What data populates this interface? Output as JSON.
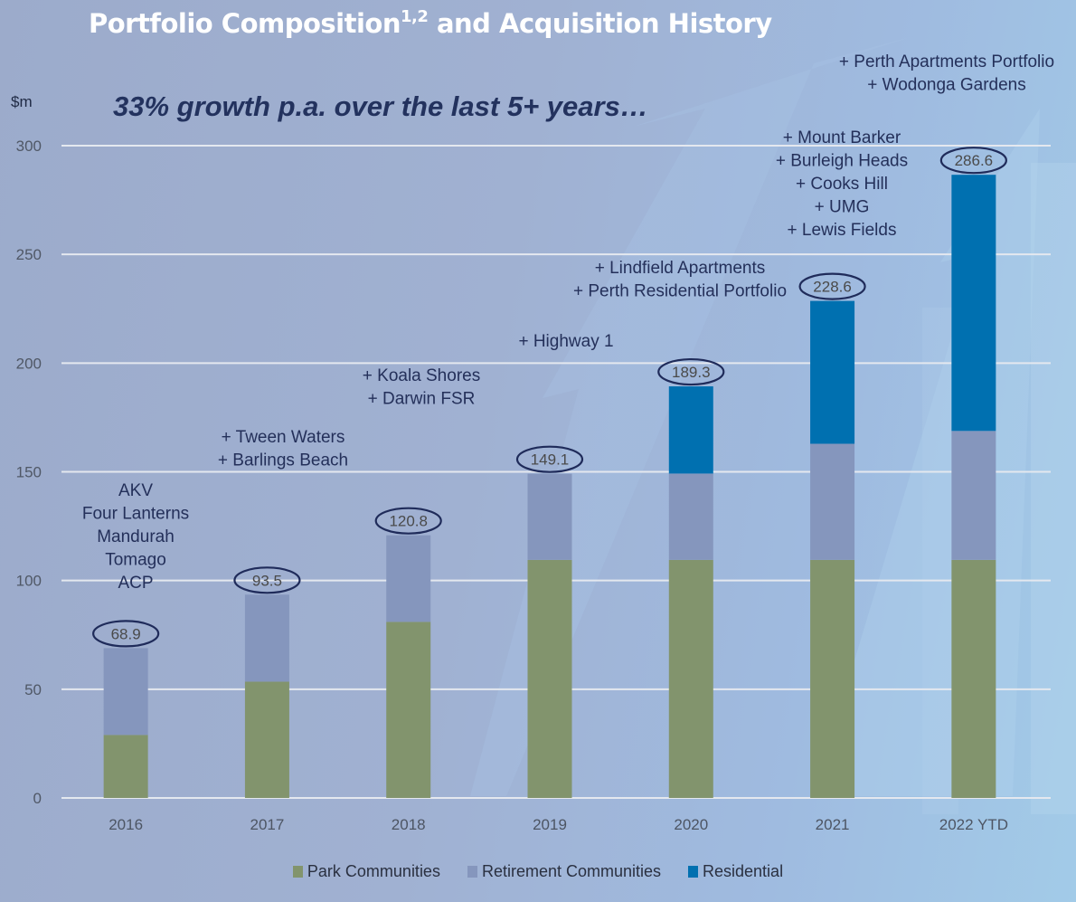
{
  "header": {
    "title_main": "Portfolio Composition",
    "title_superscript": "1,2",
    "title_rest": " and Acquisition History",
    "subtitle": "33% growth p.a. over the last 5+ years…",
    "unit_label": "$m"
  },
  "colors": {
    "park": "#82946d",
    "retirement": "#8596bd",
    "residential": "#0070b0",
    "gridline": "#e4e8ef",
    "annotation_text": "#24305a",
    "ellipse_stroke": "#1f2b5a"
  },
  "chart_data": {
    "type": "bar",
    "stacked": true,
    "title": "Portfolio Composition1,2 and Acquisition History",
    "subtitle": "33% growth p.a. over the last 5+ years…",
    "xlabel": "",
    "ylabel": "$m",
    "ylim": [
      0,
      300
    ],
    "yticks": [
      0,
      50,
      100,
      150,
      200,
      250,
      300
    ],
    "grid": true,
    "legend_position": "bottom-center",
    "categories": [
      "2016",
      "2017",
      "2018",
      "2019",
      "2020",
      "2021",
      "2022 YTD"
    ],
    "series": [
      {
        "name": "Park Communities",
        "color": "#82946d",
        "values": [
          29.0,
          53.5,
          81.0,
          109.5,
          109.5,
          109.5,
          109.5
        ]
      },
      {
        "name": "Retirement Communities",
        "color": "#8596bd",
        "values": [
          39.9,
          40.0,
          39.8,
          39.6,
          39.7,
          53.4,
          59.3
        ]
      },
      {
        "name": "Residential",
        "color": "#0070b0",
        "values": [
          0,
          0,
          0,
          0,
          40.1,
          65.7,
          117.8
        ]
      }
    ],
    "totals": [
      "68.9",
      "93.5",
      "120.8",
      "149.1",
      "189.3",
      "228.6",
      "286.6"
    ],
    "annotations": [
      {
        "category": "2016",
        "lines": [
          "AKV",
          "Four Lanterns",
          "Mandurah",
          "Tomago",
          "ACP"
        ]
      },
      {
        "category": "2017",
        "lines": [
          "+ Tween Waters",
          "+ Barlings Beach"
        ]
      },
      {
        "category": "2018",
        "lines": [
          "+ Koala Shores",
          "+ Darwin FSR"
        ]
      },
      {
        "category": "2019",
        "lines": [
          "+ Highway 1"
        ]
      },
      {
        "category": "2020",
        "lines": [
          "+ Lindfield Apartments",
          "+ Perth Residential Portfolio"
        ]
      },
      {
        "category": "2021",
        "lines": [
          "+ Mount Barker",
          "+ Burleigh Heads",
          "+ Cooks Hill",
          "+ UMG",
          "+ Lewis Fields"
        ]
      },
      {
        "category": "2022 YTD",
        "lines": [
          "+ Perth Apartments Portfolio",
          "+ Wodonga Gardens"
        ]
      }
    ]
  }
}
